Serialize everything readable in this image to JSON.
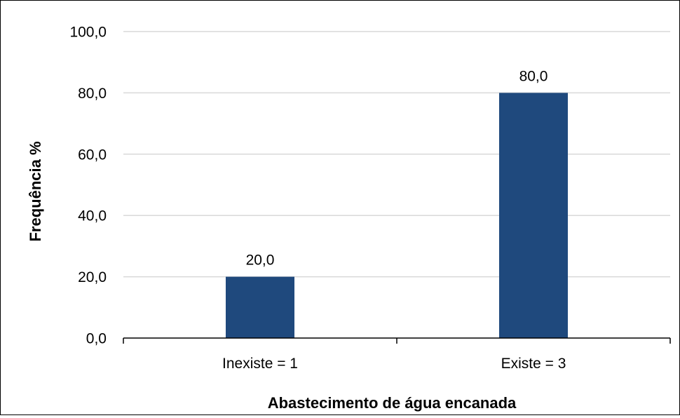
{
  "chart_data": {
    "type": "bar",
    "categories": [
      "Inexiste = 1",
      "Existe = 3"
    ],
    "values": [
      20.0,
      80.0
    ],
    "value_labels": [
      "20,0",
      "80,0"
    ],
    "xlabel": "Abastecimento de água encanada",
    "ylabel": "Frequência %",
    "ylim": [
      0,
      100
    ],
    "yticks": [
      0,
      20,
      40,
      60,
      80,
      100
    ],
    "ytick_labels": [
      "0,0",
      "20,0",
      "40,0",
      "60,0",
      "80,0",
      "100,0"
    ],
    "grid": true,
    "legend": "none",
    "bar_color": "#1F497D",
    "grid_color": "#D9D9D9"
  }
}
